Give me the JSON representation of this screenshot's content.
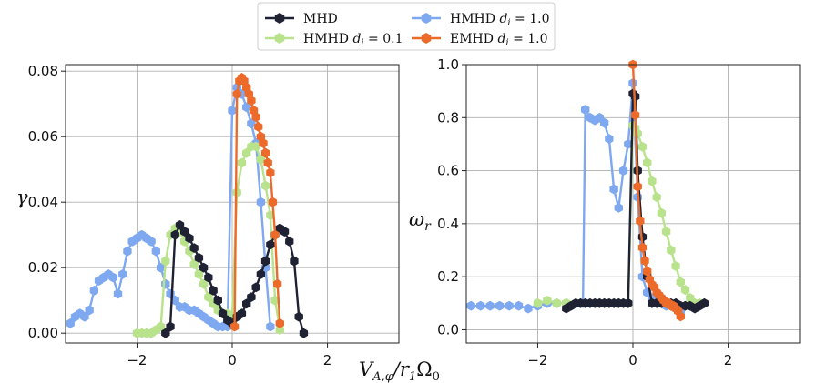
{
  "chart_data": [
    {
      "type": "line",
      "panel": "left",
      "title": "",
      "xlabel": "V_{A,φ}/r₁Ω₀",
      "ylabel": "γ",
      "xlim": [
        -3.5,
        3.5
      ],
      "ylim": [
        -0.003,
        0.082
      ],
      "xticks": [
        -2,
        0,
        2
      ],
      "xtick_labels": [
        "−2",
        "0",
        "2"
      ],
      "yticks": [
        0.0,
        0.02,
        0.04,
        0.06,
        0.08
      ],
      "ytick_labels": [
        "0.00",
        "0.02",
        "0.04",
        "0.06",
        "0.08"
      ],
      "grid": true,
      "series": [
        {
          "name": "HMHD d_i = 1.0",
          "color": "#7ea8f0",
          "x": [
            -3.4,
            -3.3,
            -3.2,
            -3.1,
            -3.0,
            -2.9,
            -2.8,
            -2.7,
            -2.6,
            -2.5,
            -2.4,
            -2.3,
            -2.2,
            -2.1,
            -2.0,
            -1.9,
            -1.8,
            -1.7,
            -1.6,
            -1.5,
            -1.4,
            -1.3,
            -1.2,
            -1.1,
            -1.0,
            -0.9,
            -0.8,
            -0.7,
            -0.6,
            -0.5,
            -0.4,
            -0.3,
            -0.2,
            -0.1,
            0.0,
            0.1,
            0.2,
            0.3,
            0.4,
            0.5,
            0.6,
            0.7,
            0.8
          ],
          "y": [
            0.003,
            0.005,
            0.006,
            0.005,
            0.007,
            0.013,
            0.016,
            0.017,
            0.018,
            0.017,
            0.012,
            0.018,
            0.025,
            0.028,
            0.029,
            0.03,
            0.029,
            0.028,
            0.025,
            0.02,
            0.015,
            0.012,
            0.01,
            0.008,
            0.008,
            0.007,
            0.007,
            0.006,
            0.005,
            0.004,
            0.003,
            0.002,
            0.002,
            0.002,
            0.068,
            0.075,
            0.073,
            0.069,
            0.064,
            0.058,
            0.04,
            0.02,
            0.002
          ]
        },
        {
          "name": "HMHD d_i = 0.1",
          "color": "#b9e28c",
          "x": [
            -2.0,
            -1.9,
            -1.8,
            -1.7,
            -1.6,
            -1.5,
            -1.4,
            -1.3,
            -1.2,
            -1.1,
            -1.0,
            -0.9,
            -0.8,
            -0.7,
            -0.6,
            -0.5,
            -0.4,
            -0.3,
            -0.2,
            -0.1,
            0.0,
            0.1,
            0.2,
            0.3,
            0.4,
            0.5,
            0.6,
            0.7,
            0.8,
            0.9,
            1.0
          ],
          "y": [
            0.0,
            0.0,
            0.0,
            0.0,
            0.001,
            0.002,
            0.022,
            0.03,
            0.032,
            0.031,
            0.028,
            0.025,
            0.021,
            0.018,
            0.015,
            0.011,
            0.009,
            0.007,
            0.006,
            0.006,
            0.005,
            0.043,
            0.052,
            0.055,
            0.057,
            0.057,
            0.053,
            0.045,
            0.036,
            0.01,
            0.001
          ]
        },
        {
          "name": "MHD",
          "color": "#1f2233",
          "x": [
            -1.4,
            -1.3,
            -1.2,
            -1.1,
            -1.0,
            -0.9,
            -0.8,
            -0.7,
            -0.6,
            -0.5,
            -0.4,
            -0.3,
            -0.2,
            -0.1,
            0.0,
            0.1,
            0.2,
            0.3,
            0.4,
            0.5,
            0.6,
            0.7,
            0.8,
            0.9,
            1.0,
            1.1,
            1.2,
            1.3,
            1.4,
            1.5
          ],
          "y": [
            0.0,
            0.002,
            0.03,
            0.033,
            0.031,
            0.029,
            0.026,
            0.023,
            0.02,
            0.017,
            0.013,
            0.01,
            0.006,
            0.004,
            0.003,
            0.005,
            0.006,
            0.009,
            0.011,
            0.014,
            0.018,
            0.022,
            0.027,
            0.03,
            0.032,
            0.031,
            0.028,
            0.022,
            0.005,
            0.0
          ]
        },
        {
          "name": "EMHD d_i = 1.0",
          "color": "#ec6b2a",
          "x": [
            0.05,
            0.1,
            0.15,
            0.2,
            0.25,
            0.3,
            0.35,
            0.4,
            0.45,
            0.5,
            0.55,
            0.6,
            0.65,
            0.7,
            0.75,
            0.8,
            0.85,
            0.9,
            0.95,
            1.0
          ],
          "y": [
            0.002,
            0.073,
            0.077,
            0.078,
            0.077,
            0.075,
            0.073,
            0.071,
            0.068,
            0.066,
            0.063,
            0.06,
            0.058,
            0.055,
            0.052,
            0.049,
            0.04,
            0.03,
            0.015,
            0.003
          ]
        }
      ]
    },
    {
      "type": "line",
      "panel": "right",
      "title": "",
      "xlabel": "",
      "ylabel": "ω_r",
      "xlim": [
        -3.5,
        3.5
      ],
      "ylim": [
        -0.05,
        1.0
      ],
      "xticks": [
        -2,
        0,
        2
      ],
      "xtick_labels": [
        "−2",
        "0",
        "2"
      ],
      "yticks": [
        0.0,
        0.2,
        0.4,
        0.6,
        0.8,
        1.0
      ],
      "ytick_labels": [
        "0.0",
        "0.2",
        "0.4",
        "0.6",
        "0.8",
        "1.0"
      ],
      "grid": true,
      "series": [
        {
          "name": "HMHD d_i = 1.0",
          "color": "#7ea8f0",
          "x": [
            -3.4,
            -3.2,
            -3.0,
            -2.8,
            -2.6,
            -2.4,
            -2.2,
            -2.0,
            -1.8,
            -1.6,
            -1.4,
            -1.2,
            -1.05,
            -1.0,
            -0.9,
            -0.8,
            -0.7,
            -0.6,
            -0.5,
            -0.4,
            -0.3,
            -0.2,
            -0.1,
            0.0,
            0.1,
            0.2,
            0.3,
            0.4,
            0.5,
            0.6,
            0.7,
            0.8,
            0.9,
            1.0
          ],
          "y": [
            0.09,
            0.09,
            0.09,
            0.09,
            0.09,
            0.09,
            0.08,
            0.09,
            0.1,
            0.1,
            0.1,
            0.1,
            0.1,
            0.83,
            0.8,
            0.79,
            0.8,
            0.78,
            0.72,
            0.53,
            0.46,
            0.6,
            0.7,
            0.93,
            0.5,
            0.2,
            0.14,
            0.12,
            0.11,
            0.1,
            0.09,
            0.09,
            0.08,
            0.07
          ]
        },
        {
          "name": "HMHD d_i = 0.1",
          "color": "#b9e28c",
          "x": [
            -2.0,
            -1.8,
            -1.6,
            -1.4,
            -1.2,
            -1.0,
            -0.8,
            -0.6,
            -0.4,
            -0.2,
            -0.1,
            0.0,
            0.05,
            0.1,
            0.2,
            0.3,
            0.4,
            0.5,
            0.6,
            0.7,
            0.8,
            0.9,
            1.0,
            1.1,
            1.2,
            1.3,
            1.4
          ],
          "y": [
            0.1,
            0.11,
            0.1,
            0.1,
            0.1,
            0.1,
            0.1,
            0.1,
            0.1,
            0.1,
            0.1,
            0.77,
            0.76,
            0.74,
            0.69,
            0.63,
            0.56,
            0.5,
            0.44,
            0.37,
            0.3,
            0.24,
            0.18,
            0.15,
            0.12,
            0.1,
            0.1
          ]
        },
        {
          "name": "MHD",
          "color": "#1f2233",
          "x": [
            -1.4,
            -1.3,
            -1.2,
            -1.1,
            -1.0,
            -0.9,
            -0.8,
            -0.7,
            -0.6,
            -0.5,
            -0.4,
            -0.3,
            -0.2,
            -0.1,
            0.0,
            0.05,
            0.1,
            0.2,
            0.3,
            0.4,
            0.5,
            0.6,
            0.7,
            0.8,
            0.9,
            1.0,
            1.1,
            1.2,
            1.3,
            1.4,
            1.5
          ],
          "y": [
            0.08,
            0.09,
            0.1,
            0.1,
            0.1,
            0.1,
            0.1,
            0.1,
            0.1,
            0.1,
            0.1,
            0.1,
            0.1,
            0.1,
            0.89,
            0.88,
            0.6,
            0.35,
            0.2,
            0.1,
            0.1,
            0.1,
            0.1,
            0.1,
            0.1,
            0.09,
            0.09,
            0.09,
            0.08,
            0.09,
            0.1
          ]
        },
        {
          "name": "EMHD d_i = 1.0",
          "color": "#ec6b2a",
          "x": [
            0.0,
            0.05,
            0.1,
            0.15,
            0.2,
            0.25,
            0.3,
            0.35,
            0.4,
            0.45,
            0.5,
            0.55,
            0.6,
            0.65,
            0.7,
            0.75,
            0.8,
            0.85,
            0.9,
            0.95,
            1.0
          ],
          "y": [
            1.0,
            0.81,
            0.54,
            0.41,
            0.31,
            0.26,
            0.22,
            0.19,
            0.17,
            0.16,
            0.14,
            0.13,
            0.12,
            0.11,
            0.1,
            0.1,
            0.09,
            0.09,
            0.08,
            0.07,
            0.05
          ]
        }
      ]
    }
  ],
  "legend": {
    "placement": "top-center",
    "entries": [
      {
        "label_main": "MHD",
        "label_var": "",
        "label_rest": "",
        "color": "#1f2233"
      },
      {
        "label_main": "HMHD ",
        "label_var": "d",
        "label_rest": " = 0.1",
        "color": "#b9e28c"
      },
      {
        "label_main": "HMHD ",
        "label_var": "d",
        "label_rest": " = 1.0",
        "color": "#7ea8f0"
      },
      {
        "label_main": "EMHD ",
        "label_var": "d",
        "label_rest": " = 1.0",
        "color": "#ec6b2a"
      }
    ]
  },
  "labels": {
    "left_ylabel": "γ",
    "right_ylabel_main": "ω",
    "right_ylabel_sub": "r",
    "xlabel_main": "V",
    "xlabel_sub": "A,φ",
    "xlabel_mid": "/r",
    "xlabel_sub2": "1",
    "xlabel_end": "Ω",
    "xlabel_sub3": "0"
  }
}
